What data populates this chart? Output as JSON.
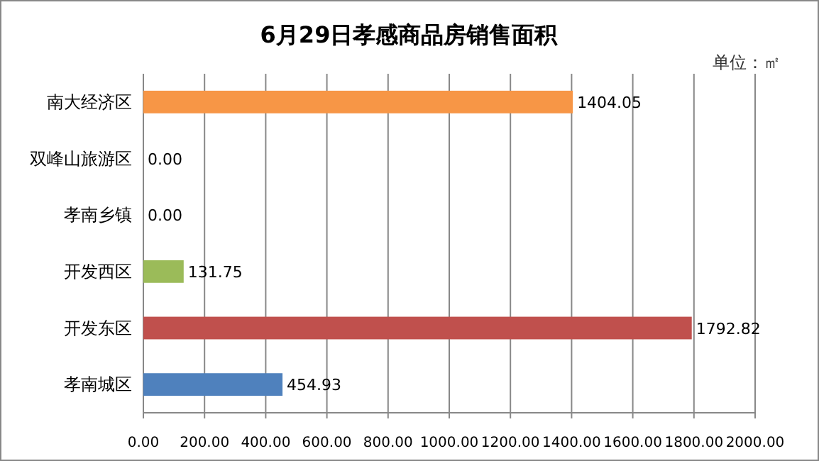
{
  "chart_data": {
    "type": "bar",
    "orientation": "horizontal",
    "title": "6月29日孝感商品房销售面积",
    "annotations": [
      "单位：㎡"
    ],
    "categories": [
      "南大经济区",
      "双峰山旅游区",
      "孝南乡镇",
      "开发西区",
      "开发东区",
      "孝南城区"
    ],
    "values": [
      1404.05,
      0,
      0,
      131.75,
      1792.82,
      454.93
    ],
    "colors": [
      "#f79646",
      "#4bacc6",
      "#8064a2",
      "#9bbb59",
      "#c0504d",
      "#4f81bd"
    ],
    "value_labels": [
      "1404.05",
      "0.00",
      "0.00",
      "131.75",
      "1792.82",
      "454.93"
    ],
    "xlim": [
      0,
      2000
    ],
    "xticks": [
      {
        "value": 0,
        "label": "0.00"
      },
      {
        "value": 200,
        "label": "200.00"
      },
      {
        "value": 400,
        "label": "400.00"
      },
      {
        "value": 600,
        "label": "600.00"
      },
      {
        "value": 800,
        "label": "800.00"
      },
      {
        "value": 1000,
        "label": "1000.00"
      },
      {
        "value": 1200,
        "label": "1200.00"
      },
      {
        "value": 1400,
        "label": "1400.00"
      },
      {
        "value": 1600,
        "label": "1600.00"
      },
      {
        "value": 1800,
        "label": "1800.00"
      },
      {
        "value": 2000,
        "label": "2000.00"
      }
    ],
    "grid": "x"
  }
}
